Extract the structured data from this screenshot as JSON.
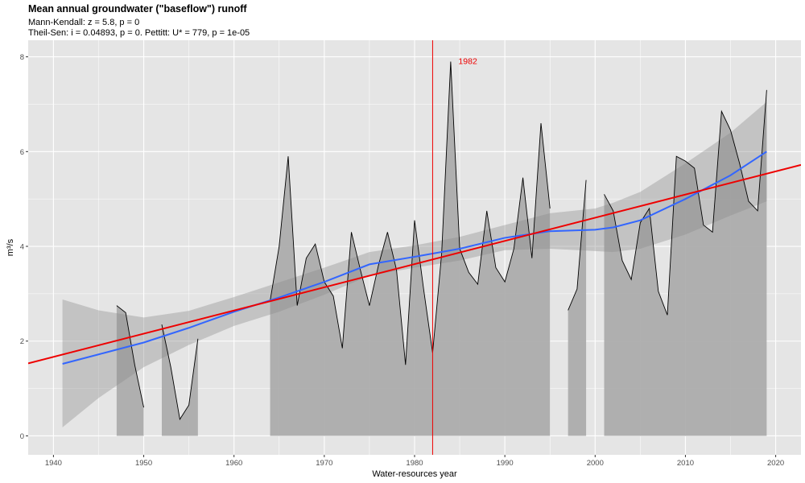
{
  "title": "Mean annual groundwater (\"baseflow\") runoff",
  "subtitle_line1": "Mann-Kendall: z = 5.8, p = 0",
  "subtitle_line2": "Theil-Sen: i = 0.04893, p = 0. Pettitt: U* = 779, p = 1e-05",
  "colors": {
    "panel": "#e5e5e5",
    "grid": "#ffffff",
    "area": "#a9a9a9",
    "ribbon": "#b8b8b8",
    "loess": "#3366ff",
    "trend": "#ee0000",
    "changepoint": "#ee0000"
  },
  "chart_data": {
    "type": "area",
    "xlabel": "Water-resources year",
    "ylabel": "m³/s",
    "xlim": [
      1937.2,
      2022.8
    ],
    "ylim": [
      -0.4,
      8.35
    ],
    "x_ticks": [
      1940,
      1950,
      1960,
      1970,
      1980,
      1990,
      2000,
      2010,
      2020
    ],
    "y_ticks": [
      0,
      2,
      4,
      6,
      8
    ],
    "grid": true,
    "series": [
      {
        "type": "area",
        "segments": [
          [
            [
              1947,
              2.75
            ],
            [
              1948,
              2.6
            ],
            [
              1949,
              1.5
            ],
            [
              1950,
              0.6
            ]
          ],
          [
            [
              1952,
              2.35
            ],
            [
              1953,
              1.45
            ],
            [
              1954,
              0.35
            ],
            [
              1955,
              0.65
            ],
            [
              1956,
              2.05
            ]
          ],
          [
            [
              1964,
              2.85
            ],
            [
              1965,
              4.0
            ],
            [
              1966,
              5.9
            ],
            [
              1967,
              2.75
            ],
            [
              1968,
              3.75
            ],
            [
              1969,
              4.05
            ],
            [
              1970,
              3.25
            ],
            [
              1971,
              2.95
            ],
            [
              1972,
              1.85
            ],
            [
              1973,
              4.3
            ],
            [
              1974,
              3.5
            ],
            [
              1975,
              2.75
            ],
            [
              1976,
              3.6
            ],
            [
              1977,
              4.3
            ],
            [
              1978,
              3.5
            ],
            [
              1979,
              1.5
            ],
            [
              1980,
              4.55
            ],
            [
              1981,
              3.1
            ],
            [
              1982,
              1.75
            ],
            [
              1983,
              3.85
            ],
            [
              1984,
              7.9
            ],
            [
              1985,
              3.95
            ],
            [
              1986,
              3.45
            ],
            [
              1987,
              3.2
            ],
            [
              1988,
              4.75
            ],
            [
              1989,
              3.55
            ],
            [
              1990,
              3.25
            ],
            [
              1991,
              3.95
            ],
            [
              1992,
              5.45
            ],
            [
              1993,
              3.75
            ],
            [
              1994,
              6.6
            ],
            [
              1995,
              4.8
            ]
          ],
          [
            [
              1997,
              2.65
            ],
            [
              1998,
              3.1
            ],
            [
              1999,
              5.4
            ]
          ],
          [
            [
              2001,
              5.1
            ],
            [
              2002,
              4.75
            ],
            [
              2003,
              3.7
            ],
            [
              2004,
              3.3
            ],
            [
              2005,
              4.5
            ],
            [
              2006,
              4.8
            ],
            [
              2007,
              3.05
            ],
            [
              2008,
              2.55
            ],
            [
              2009,
              5.9
            ],
            [
              2010,
              5.8
            ],
            [
              2011,
              5.65
            ],
            [
              2012,
              4.45
            ],
            [
              2013,
              4.3
            ],
            [
              2014,
              6.85
            ],
            [
              2015,
              6.45
            ],
            [
              2016,
              5.75
            ],
            [
              2017,
              4.95
            ],
            [
              2018,
              4.75
            ],
            [
              2019,
              7.3
            ]
          ]
        ]
      },
      {
        "type": "loess",
        "x": [
          1941,
          1945,
          1950,
          1955,
          1960,
          1965,
          1970,
          1975,
          1980,
          1985,
          1990,
          1995,
          2000,
          2002,
          2005,
          2010,
          2015,
          2019
        ],
        "y": [
          1.52,
          1.72,
          1.97,
          2.28,
          2.62,
          2.92,
          3.25,
          3.62,
          3.78,
          3.95,
          4.18,
          4.32,
          4.35,
          4.4,
          4.55,
          5.0,
          5.5,
          6.0
        ],
        "lower": [
          0.18,
          0.8,
          1.45,
          1.92,
          2.32,
          2.62,
          2.98,
          3.38,
          3.55,
          3.7,
          3.92,
          3.95,
          3.9,
          3.88,
          3.95,
          4.25,
          4.65,
          4.95
        ],
        "upper": [
          2.88,
          2.65,
          2.5,
          2.64,
          2.93,
          3.24,
          3.55,
          3.88,
          4.02,
          4.2,
          4.45,
          4.7,
          4.8,
          4.92,
          5.15,
          5.75,
          6.4,
          7.05
        ]
      },
      {
        "type": "trend",
        "x": [
          1937.2,
          2022.8
        ],
        "y": [
          1.53,
          5.72
        ]
      }
    ],
    "changepoint": {
      "x": 1982,
      "label": "1982"
    }
  }
}
